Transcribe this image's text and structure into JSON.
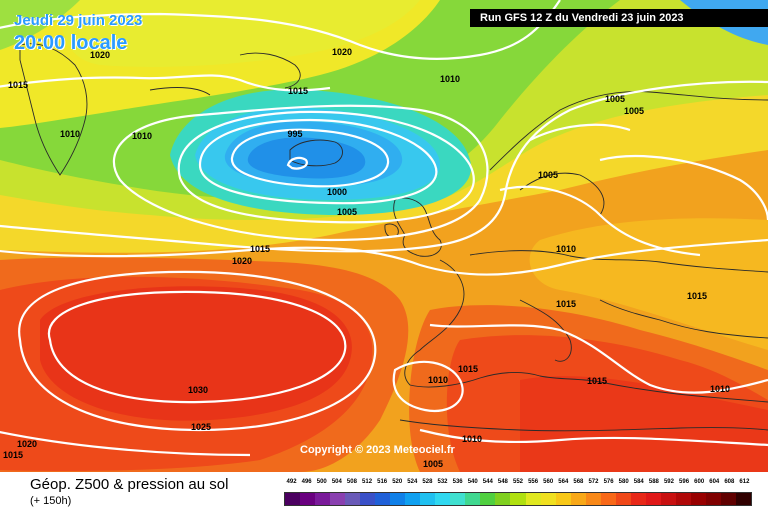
{
  "header": {
    "date": "Jeudi 29 juin 2023",
    "time": "20:00 locale",
    "run": "Run GFS 12 Z du Vendredi 23 juin 2023"
  },
  "footer": {
    "title": "Géop. Z500 & pression au sol",
    "subtitle": "(+ 150h)",
    "copyright": "Copyright © 2023 Meteociel.fr"
  },
  "isobars": [
    {
      "label": "1020"
    },
    {
      "label": "1020"
    },
    {
      "label": "1015"
    },
    {
      "label": "1015"
    },
    {
      "label": "1010"
    },
    {
      "label": "1010"
    },
    {
      "label": "1010"
    },
    {
      "label": "995"
    },
    {
      "label": "1000"
    },
    {
      "label": "1005"
    },
    {
      "label": "1005"
    },
    {
      "label": "1005"
    },
    {
      "label": "1005"
    },
    {
      "label": "1015"
    },
    {
      "label": "1020"
    },
    {
      "label": "1010"
    },
    {
      "label": "1015"
    },
    {
      "label": "1015"
    },
    {
      "label": "1030"
    },
    {
      "label": "1025"
    },
    {
      "label": "1010"
    },
    {
      "label": "1015"
    },
    {
      "label": "1015"
    },
    {
      "label": "1010"
    },
    {
      "label": "1010"
    },
    {
      "label": "1020"
    },
    {
      "label": "1015"
    },
    {
      "label": "1005"
    }
  ],
  "scale": {
    "labels": [
      "492",
      "496",
      "500",
      "504",
      "508",
      "512",
      "516",
      "520",
      "524",
      "528",
      "532",
      "536",
      "540",
      "544",
      "548",
      "552",
      "556",
      "560",
      "564",
      "568",
      "572",
      "576",
      "580",
      "584",
      "588",
      "592",
      "596",
      "600",
      "604",
      "608",
      "612"
    ],
    "colors": [
      "#4b0060",
      "#6a0080",
      "#7a1a9a",
      "#8a40b0",
      "#6a5ab8",
      "#3a50c8",
      "#2060d8",
      "#1080e8",
      "#10a0f0",
      "#20c0f0",
      "#30d8f0",
      "#40e0d0",
      "#40d890",
      "#50d040",
      "#80d020",
      "#b0e010",
      "#e0e820",
      "#f0e020",
      "#f8c818",
      "#f8a818",
      "#f88818",
      "#f86818",
      "#f04818",
      "#e82818",
      "#e01818",
      "#c81010",
      "#b00808",
      "#980000",
      "#800000",
      "#600000",
      "#300000"
    ]
  }
}
